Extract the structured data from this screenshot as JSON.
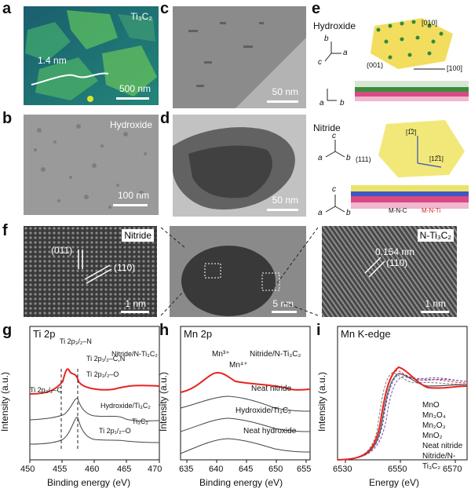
{
  "panels": {
    "a": {
      "letter": "a",
      "label": "Ti₃C₂",
      "line_label": "1.4 nm",
      "scale": "500 nm"
    },
    "b": {
      "letter": "b",
      "label": "Hydroxide",
      "scale": "100 nm"
    },
    "c": {
      "letter": "c",
      "scale": "50 nm"
    },
    "d": {
      "letter": "d",
      "scale": "50 nm"
    },
    "e": {
      "letter": "e",
      "hydroxide_label": "Hydroxide",
      "nitride_label": "Nitride",
      "dir_010": "[010]",
      "dir_100": "[100]",
      "plane_001": "(001)",
      "plane_111": "(111)",
      "dir_112": "[1̅2]",
      "dir_121": "[12̅1]",
      "bond1": "M-N-C",
      "bond2": "M-N-Ti",
      "axes": {
        "a": "a",
        "b": "b",
        "c": "c"
      }
    },
    "f": {
      "letter": "f",
      "left_label": "Nitride",
      "right_label": "N-Ti₃C₂",
      "plane_011": "(011)",
      "plane_110": "(110)",
      "d_spacing": "0.154 nm",
      "plane_110b": "(110)",
      "scale_left": "1 nm",
      "scale_mid": "5 nm",
      "scale_right": "1 nm"
    },
    "g": {
      "letter": "g",
      "title": "Ti 2p",
      "xlabel": "Binding energy (eV)",
      "ylabel": "Intensity (a.u.)",
      "ticks": [
        "450",
        "455",
        "460",
        "465",
        "470"
      ],
      "annotations": [
        "Ti 2p₃/₂–N",
        "Ti 2p₁/₂–C,N",
        "Ti 2p₃/₂–O",
        "Ti 2p₃/₂–C",
        "Ti 2p₁/₂–O"
      ],
      "series": [
        "Nitride/N-Ti₃C₂",
        "Hydroxide/Ti₃C₂",
        "Ti₃C₂"
      ]
    },
    "h": {
      "letter": "h",
      "title": "Mn 2p",
      "xlabel": "Binding energy (eV)",
      "ylabel": "Intensity (a.u.)",
      "ticks": [
        "635",
        "640",
        "645",
        "650",
        "655"
      ],
      "annotations": [
        "Mn³⁺",
        "Mn⁴⁺"
      ],
      "series": [
        "Nitride/N-Ti₃C₂",
        "Neat nitride",
        "Hydroxide/Ti₃C₂",
        "Neat hydroxide"
      ]
    },
    "i": {
      "letter": "i",
      "title": "Mn K-edge",
      "xlabel": "Energy (eV)",
      "ylabel": "Intensity (a.u.)",
      "ticks": [
        "6530",
        "6550",
        "6570"
      ],
      "legend": [
        "MnO",
        "Mn₃O₄",
        "Mn₂O₃",
        "MnO₂",
        "Neat nitride",
        "Nitride/N-Ti₃C₂"
      ]
    }
  },
  "colors": {
    "red": "#e8231f",
    "grey": "#555555",
    "olive": "#2ea36a"
  }
}
